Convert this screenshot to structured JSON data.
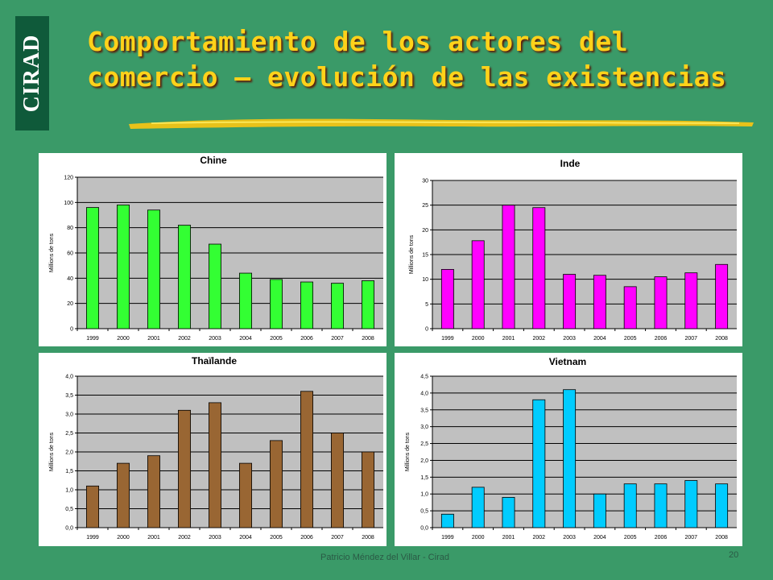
{
  "logo": {
    "text": "CIRAD"
  },
  "slide": {
    "title_line1": "Comportamiento de los actores del",
    "title_line2": "comercio – evolución de las existencias",
    "footer": "Patricio Méndez del Villar - Cirad",
    "page_number": "20"
  },
  "colors": {
    "background": "#3a9a68",
    "title": "#ffd21a",
    "plot_area": "#c0c0c0",
    "chine": "#33ff33",
    "inde": "#ff00ff",
    "thailande": "#996633",
    "vietnam": "#00ccff"
  },
  "chart_data": [
    {
      "type": "bar",
      "title": "Chine",
      "ylabel": "Millions de tons",
      "xlabel": "",
      "categories": [
        "1999",
        "2000",
        "2001",
        "2002",
        "2003",
        "2004",
        "2005",
        "2006",
        "2007",
        "2008"
      ],
      "values": [
        96,
        98,
        94,
        82,
        67,
        44,
        39,
        37,
        36,
        38
      ],
      "ylim": [
        0,
        120
      ],
      "yticks": [
        "0",
        "20",
        "40",
        "60",
        "80",
        "100",
        "120"
      ],
      "grid": true,
      "color": "#33ff33"
    },
    {
      "type": "bar",
      "title": "Inde",
      "ylabel": "Millions de tons",
      "xlabel": "",
      "categories": [
        "1999",
        "2000",
        "2001",
        "2002",
        "2003",
        "2004",
        "2005",
        "2006",
        "2007",
        "2008"
      ],
      "values": [
        12,
        17.8,
        25,
        24.5,
        11,
        10.8,
        8.5,
        10.5,
        11.3,
        13
      ],
      "ylim": [
        0,
        30
      ],
      "yticks": [
        "0",
        "5",
        "10",
        "15",
        "20",
        "25",
        "30"
      ],
      "grid": true,
      "color": "#ff00ff"
    },
    {
      "type": "bar",
      "title": "Thaïlande",
      "ylabel": "Millions de tons",
      "xlabel": "",
      "categories": [
        "1999",
        "2000",
        "2001",
        "2002",
        "2003",
        "2004",
        "2005",
        "2006",
        "2007",
        "2008"
      ],
      "values": [
        1.1,
        1.7,
        1.9,
        3.1,
        3.3,
        1.7,
        2.3,
        3.6,
        2.5,
        2.0
      ],
      "ylim": [
        0,
        4
      ],
      "yticks": [
        "0,0",
        "0,5",
        "1,0",
        "1,5",
        "2,0",
        "2,5",
        "3,0",
        "3,5",
        "4,0"
      ],
      "grid": true,
      "color": "#996633"
    },
    {
      "type": "bar",
      "title": "Vietnam",
      "ylabel": "Millions de tons",
      "xlabel": "",
      "categories": [
        "1999",
        "2000",
        "2001",
        "2002",
        "2003",
        "2004",
        "2005",
        "2006",
        "2007",
        "2008"
      ],
      "values": [
        0.4,
        1.2,
        0.9,
        3.8,
        4.1,
        1.0,
        1.3,
        1.3,
        1.4,
        1.3
      ],
      "ylim": [
        0,
        4.5
      ],
      "yticks": [
        "0,0",
        "0,5",
        "1,0",
        "1,5",
        "2,0",
        "2,5",
        "3,0",
        "3,5",
        "4,0",
        "4,5"
      ],
      "grid": true,
      "color": "#00ccff"
    }
  ]
}
